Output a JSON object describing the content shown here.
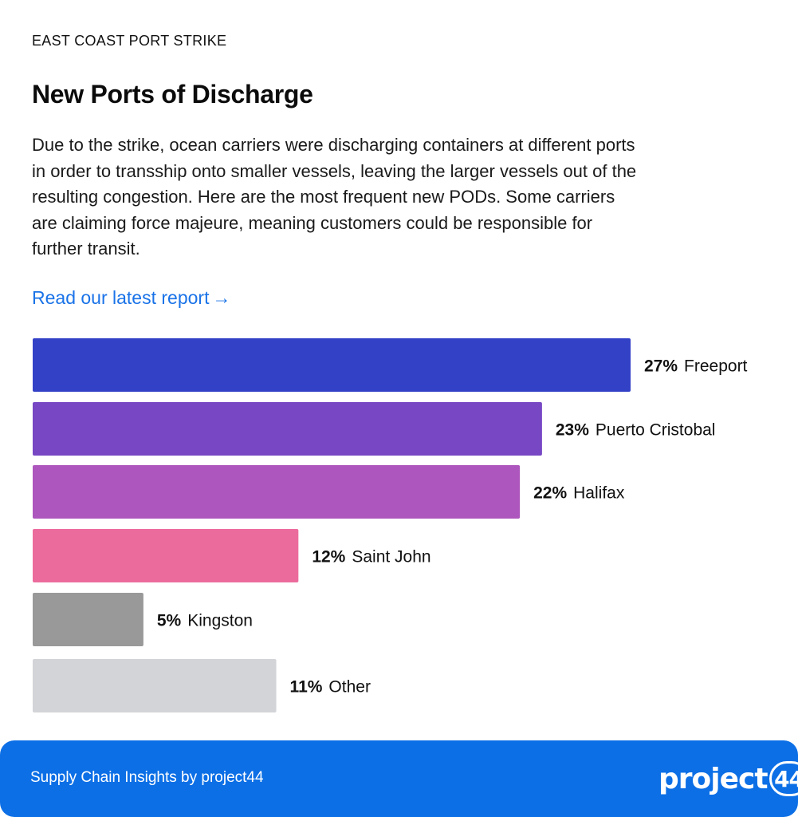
{
  "header": {
    "kicker": "EAST COAST PORT STRIKE",
    "title": "New Ports of Discharge",
    "description": "Due to the strike, ocean carriers were discharging containers at different ports in order to transship onto smaller vessels, leaving the larger vessels out of the resulting congestion. Here are the most frequent new PODs. Some carriers are claiming force majeure, meaning customers could be responsible for further transit.",
    "link_label": "Read our latest report",
    "link_arrow": "→"
  },
  "chart_data": {
    "type": "bar",
    "orientation": "horizontal",
    "title": "",
    "xlabel": "",
    "ylabel": "",
    "grid": false,
    "legend": "none",
    "xlim": [
      0,
      27
    ],
    "categories": [
      "Freeport",
      "Puerto Cristobal",
      "Halifax",
      "Saint John",
      "Kingston",
      "Other"
    ],
    "values": [
      27,
      23,
      22,
      12,
      5,
      11
    ],
    "value_labels": [
      "27%",
      "23%",
      "22%",
      "12%",
      "5%",
      "11%"
    ],
    "colors": [
      "#3341c7",
      "#7747c4",
      "#ad56bd",
      "#ec6b9d",
      "#999999",
      "#d3d4d8"
    ]
  },
  "footer": {
    "text": "Supply Chain Insights by project44",
    "logo_word": "project",
    "logo_number": "44"
  }
}
